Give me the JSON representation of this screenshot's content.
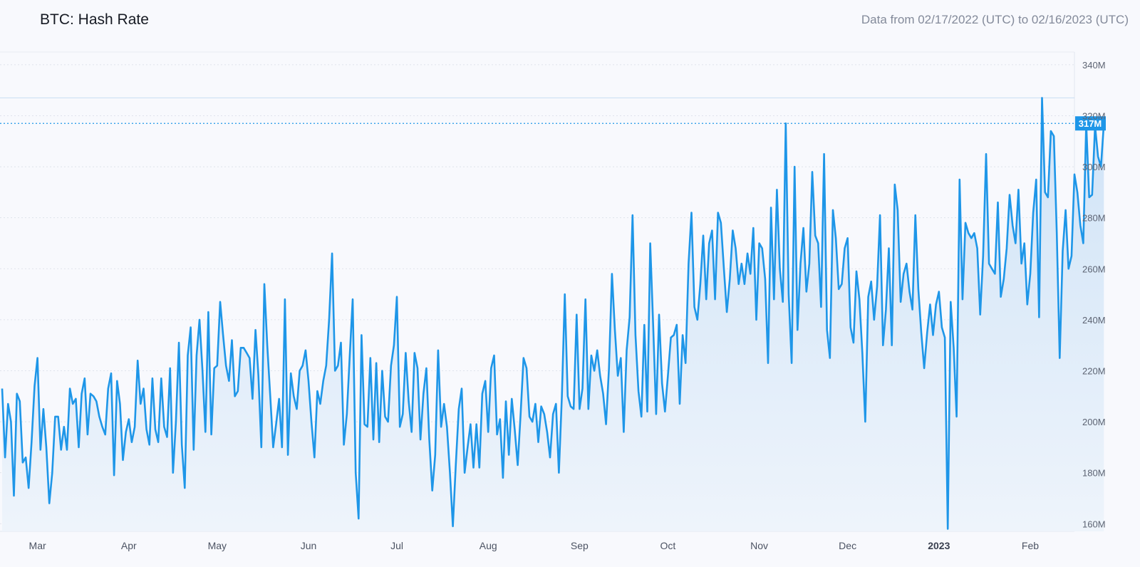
{
  "header": {
    "title": "BTC: Hash Rate",
    "date_range": "Data from 02/17/2022 (UTC) to 02/16/2023 (UTC)"
  },
  "colors": {
    "line": "#1e96e8",
    "fill_top": "#cfe3f7",
    "fill_bottom": "#eef4fb",
    "grid": "#dfe3ec",
    "label_bg": "#1e96e8"
  },
  "chart_data": {
    "type": "area",
    "title": "BTC: Hash Rate",
    "xlabel": "",
    "ylabel": "",
    "x_start": "2022-02-17",
    "x_end": "2023-02-16",
    "ylim": [
      157,
      345
    ],
    "yticks": [
      {
        "value": 160,
        "label": "160M"
      },
      {
        "value": 180,
        "label": "180M"
      },
      {
        "value": 200,
        "label": "200M"
      },
      {
        "value": 220,
        "label": "220M"
      },
      {
        "value": 240,
        "label": "240M"
      },
      {
        "value": 260,
        "label": "260M"
      },
      {
        "value": 280,
        "label": "280M"
      },
      {
        "value": 300,
        "label": "300M"
      },
      {
        "value": 320,
        "label": "320M"
      },
      {
        "value": 340,
        "label": "340M"
      }
    ],
    "xticks": [
      {
        "date": "2022-03-01",
        "label": "Mar"
      },
      {
        "date": "2022-04-01",
        "label": "Apr"
      },
      {
        "date": "2022-05-01",
        "label": "May"
      },
      {
        "date": "2022-06-01",
        "label": "Jun"
      },
      {
        "date": "2022-07-01",
        "label": "Jul"
      },
      {
        "date": "2022-08-01",
        "label": "Aug"
      },
      {
        "date": "2022-09-01",
        "label": "Sep"
      },
      {
        "date": "2022-10-01",
        "label": "Oct"
      },
      {
        "date": "2022-11-01",
        "label": "Nov"
      },
      {
        "date": "2022-12-01",
        "label": "Dec"
      },
      {
        "date": "2023-01-01",
        "label": "2023",
        "bold": true
      },
      {
        "date": "2023-02-01",
        "label": "Feb"
      }
    ],
    "current_value": 317,
    "current_label": "317M",
    "series": [
      {
        "x_start": "2022-02-17",
        "step_days": 1,
        "values": [
          213,
          186,
          207,
          200,
          171,
          211,
          208,
          184,
          186,
          174,
          192,
          214,
          225,
          189,
          205,
          190,
          168,
          180,
          202,
          202,
          189,
          198,
          189,
          213,
          207,
          209,
          190,
          211,
          217,
          195,
          211,
          210,
          208,
          202,
          198,
          195,
          213,
          219,
          179,
          216,
          207,
          185,
          196,
          201,
          192,
          198,
          224,
          207,
          213,
          197,
          191,
          217,
          197,
          192,
          217,
          198,
          194,
          221,
          180,
          200,
          231,
          191,
          174,
          226,
          237,
          189,
          226,
          240,
          220,
          196,
          243,
          195,
          221,
          222,
          247,
          234,
          222,
          216,
          232,
          210,
          212,
          229,
          229,
          227,
          225,
          209,
          236,
          218,
          190,
          254,
          230,
          210,
          190,
          199,
          209,
          190,
          248,
          187,
          219,
          210,
          205,
          220,
          222,
          228,
          216,
          200,
          186,
          212,
          207,
          216,
          222,
          240,
          266,
          220,
          222,
          231,
          191,
          203,
          226,
          248,
          180,
          162,
          234,
          199,
          198,
          225,
          193,
          223,
          192,
          220,
          202,
          200,
          222,
          230,
          249,
          198,
          203,
          227,
          208,
          196,
          227,
          221,
          193,
          211,
          221,
          193,
          173,
          187,
          228,
          198,
          207,
          198,
          180,
          159,
          183,
          205,
          213,
          180,
          190,
          199,
          182,
          199,
          182,
          211,
          216,
          196,
          221,
          226,
          195,
          201,
          178,
          208,
          187,
          209,
          197,
          183,
          203,
          225,
          221,
          202,
          200,
          207,
          192,
          206,
          203,
          196,
          186,
          203,
          207,
          180,
          210,
          250,
          210,
          206,
          205,
          242,
          205,
          213,
          248,
          205,
          226,
          220,
          228,
          218,
          211,
          199,
          221,
          258,
          236,
          218,
          225,
          196,
          228,
          241,
          281,
          234,
          212,
          202,
          238,
          204,
          270,
          238,
          203,
          242,
          215,
          204,
          218,
          233,
          234,
          238,
          207,
          234,
          223,
          262,
          282,
          245,
          240,
          254,
          273,
          248,
          270,
          275,
          248,
          282,
          278,
          260,
          243,
          256,
          275,
          268,
          254,
          262,
          254,
          266,
          258,
          276,
          240,
          270,
          268,
          256,
          223,
          284,
          248,
          291,
          260,
          247,
          317,
          250,
          223,
          300,
          236,
          262,
          276,
          251,
          262,
          298,
          273,
          270,
          245,
          305,
          236,
          225,
          283,
          272,
          252,
          254,
          268,
          272,
          237,
          231,
          259,
          248,
          227,
          200,
          249,
          255,
          240,
          253,
          281,
          230,
          244,
          268,
          230,
          293,
          283,
          247,
          258,
          262,
          251,
          244,
          281,
          252,
          235,
          221,
          235,
          246,
          234,
          246,
          251,
          237,
          233,
          158,
          247,
          229,
          202,
          295,
          248,
          278,
          274,
          272,
          274,
          268,
          242,
          265,
          305,
          262,
          260,
          258,
          286,
          249,
          256,
          268,
          289,
          277,
          270,
          291,
          262,
          270,
          246,
          258,
          282,
          295,
          241,
          327,
          290,
          288,
          314,
          312,
          274,
          225,
          267,
          283,
          260,
          265,
          297,
          290,
          277,
          270,
          317,
          288,
          289,
          316,
          304,
          300,
          317
        ]
      }
    ]
  },
  "watermark": "decorative logo shapes"
}
